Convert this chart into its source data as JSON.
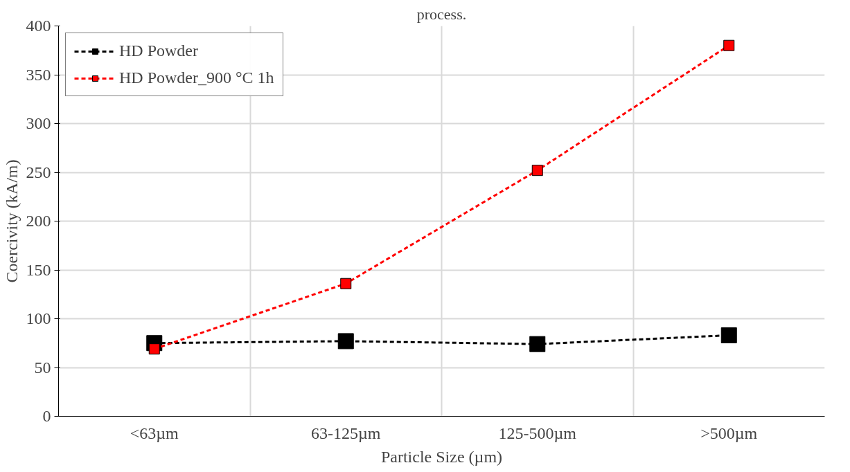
{
  "chart_data": {
    "type": "line",
    "title": "process.",
    "xlabel": "Particle Size (µm)",
    "ylabel": "Coercivity (kA/m)",
    "categories": [
      "<63µm",
      "63-125µm",
      "125-500µm",
      ">500µm"
    ],
    "series": [
      {
        "name": "HD Powder",
        "color": "#000000",
        "values": [
          75,
          77,
          74,
          83
        ]
      },
      {
        "name": "HD Powder_900 °C 1h",
        "color": "#ff0000",
        "values": [
          69,
          136,
          252,
          380
        ]
      }
    ],
    "ylim": [
      0,
      400
    ],
    "yticks": [
      0,
      50,
      100,
      150,
      200,
      250,
      300,
      350,
      400
    ],
    "grid": true,
    "legend": "top left",
    "marker": "square",
    "line_style": "dashed"
  }
}
